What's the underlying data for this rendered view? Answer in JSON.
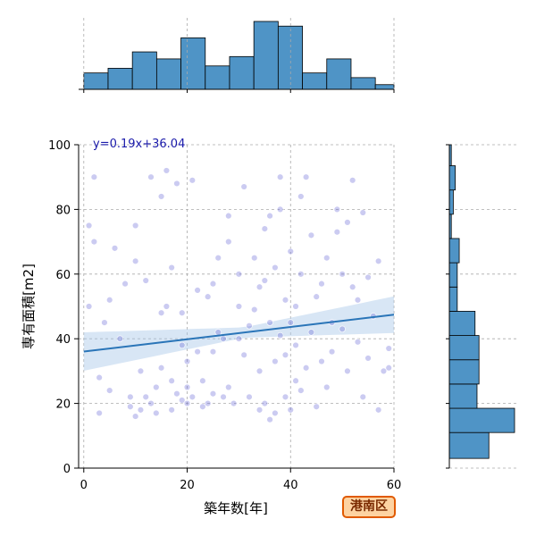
{
  "badge": {
    "label": "港南区",
    "border_color": "#e05a00",
    "fill_color": "#fdd3a2"
  },
  "chart_data": {
    "type": "scatter",
    "xlabel": "築年数[年]",
    "ylabel": "専有面積[m2]",
    "xlim": [
      -1,
      60
    ],
    "ylim": [
      0,
      100
    ],
    "xticks": [
      0,
      20,
      40,
      60
    ],
    "yticks": [
      0,
      20,
      40,
      60,
      80,
      100
    ],
    "grid": true,
    "point_color": "#6b6bd6",
    "bar_color": "#4f94c6",
    "line_color": "#2a75b8",
    "annotation": "y=0.19x+36.04",
    "regression": {
      "slope": 0.19,
      "intercept": 36.04
    },
    "marginal_x": {
      "bin_edges": [
        0,
        4.7,
        9.4,
        14.1,
        18.8,
        23.5,
        28.2,
        32.9,
        37.6,
        42.3,
        47,
        51.7,
        56.4,
        60
      ],
      "heights": [
        7,
        9,
        16,
        13,
        22,
        10,
        14,
        29,
        27,
        7,
        13,
        5,
        2
      ]
    },
    "marginal_y": {
      "bin_edges": [
        0,
        3,
        11,
        18.5,
        26,
        33.5,
        41,
        48.5,
        56,
        63.5,
        71,
        78.5,
        86,
        93.5,
        100
      ],
      "counts": [
        0,
        20,
        33,
        14,
        15,
        15,
        13,
        4,
        4,
        5,
        1,
        2,
        3,
        1
      ]
    },
    "points": [
      [
        1,
        50
      ],
      [
        1,
        75
      ],
      [
        2,
        90
      ],
      [
        2,
        70
      ],
      [
        3,
        17
      ],
      [
        3,
        28
      ],
      [
        4,
        45
      ],
      [
        5,
        52
      ],
      [
        5,
        24
      ],
      [
        6,
        68
      ],
      [
        7,
        40
      ],
      [
        8,
        57
      ],
      [
        9,
        19
      ],
      [
        9,
        22
      ],
      [
        10,
        16
      ],
      [
        10,
        64
      ],
      [
        10,
        75
      ],
      [
        11,
        18
      ],
      [
        11,
        30
      ],
      [
        12,
        58
      ],
      [
        12,
        22
      ],
      [
        13,
        90
      ],
      [
        13,
        20
      ],
      [
        14,
        17
      ],
      [
        14,
        25
      ],
      [
        15,
        31
      ],
      [
        15,
        48
      ],
      [
        15,
        84
      ],
      [
        16,
        50
      ],
      [
        16,
        92
      ],
      [
        17,
        27
      ],
      [
        17,
        62
      ],
      [
        17,
        18
      ],
      [
        18,
        23
      ],
      [
        18,
        88
      ],
      [
        19,
        21
      ],
      [
        19,
        48
      ],
      [
        19,
        38
      ],
      [
        20,
        20
      ],
      [
        20,
        25
      ],
      [
        20,
        33
      ],
      [
        21,
        89
      ],
      [
        21,
        22
      ],
      [
        22,
        55
      ],
      [
        22,
        36
      ],
      [
        23,
        19
      ],
      [
        23,
        27
      ],
      [
        24,
        53
      ],
      [
        24,
        20
      ],
      [
        25,
        57
      ],
      [
        25,
        23
      ],
      [
        25,
        36
      ],
      [
        26,
        65
      ],
      [
        26,
        42
      ],
      [
        27,
        40
      ],
      [
        27,
        22
      ],
      [
        28,
        70
      ],
      [
        28,
        78
      ],
      [
        28,
        25
      ],
      [
        29,
        20
      ],
      [
        30,
        60
      ],
      [
        30,
        50
      ],
      [
        30,
        40
      ],
      [
        31,
        87
      ],
      [
        31,
        35
      ],
      [
        32,
        44
      ],
      [
        32,
        22
      ],
      [
        33,
        49
      ],
      [
        33,
        65
      ],
      [
        34,
        18
      ],
      [
        34,
        56
      ],
      [
        34,
        30
      ],
      [
        35,
        74
      ],
      [
        35,
        58
      ],
      [
        35,
        20
      ],
      [
        36,
        15
      ],
      [
        36,
        45
      ],
      [
        36,
        78
      ],
      [
        37,
        33
      ],
      [
        37,
        62
      ],
      [
        37,
        17
      ],
      [
        38,
        80
      ],
      [
        38,
        41
      ],
      [
        38,
        90
      ],
      [
        39,
        22
      ],
      [
        39,
        52
      ],
      [
        39,
        35
      ],
      [
        40,
        18
      ],
      [
        40,
        67
      ],
      [
        40,
        45
      ],
      [
        41,
        27
      ],
      [
        41,
        38
      ],
      [
        41,
        50
      ],
      [
        42,
        60
      ],
      [
        42,
        24
      ],
      [
        42,
        84
      ],
      [
        43,
        90
      ],
      [
        43,
        31
      ],
      [
        44,
        72
      ],
      [
        44,
        42
      ],
      [
        45,
        53
      ],
      [
        45,
        19
      ],
      [
        46,
        33
      ],
      [
        46,
        57
      ],
      [
        47,
        65
      ],
      [
        47,
        25
      ],
      [
        48,
        45
      ],
      [
        48,
        36
      ],
      [
        49,
        73
      ],
      [
        49,
        80
      ],
      [
        50,
        60
      ],
      [
        50,
        43
      ],
      [
        51,
        76
      ],
      [
        51,
        30
      ],
      [
        52,
        89
      ],
      [
        52,
        56
      ],
      [
        53,
        52
      ],
      [
        53,
        39
      ],
      [
        54,
        22
      ],
      [
        54,
        79
      ],
      [
        55,
        34
      ],
      [
        55,
        59
      ],
      [
        56,
        47
      ],
      [
        57,
        18
      ],
      [
        57,
        64
      ],
      [
        58,
        30
      ],
      [
        59,
        31
      ],
      [
        59,
        37
      ]
    ]
  }
}
